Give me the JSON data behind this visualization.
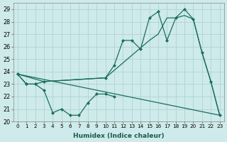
{
  "xlabel": "Humidex (Indice chaleur)",
  "background_color": "#ceeaea",
  "grid_color": "#aacfcf",
  "line_color": "#1a6e5e",
  "xlim": [
    -0.5,
    23.5
  ],
  "ylim": [
    20,
    29.5
  ],
  "yticks": [
    20,
    21,
    22,
    23,
    24,
    25,
    26,
    27,
    28,
    29
  ],
  "xticks": [
    0,
    1,
    2,
    3,
    4,
    5,
    6,
    7,
    8,
    9,
    10,
    11,
    12,
    13,
    14,
    15,
    16,
    17,
    18,
    19,
    20,
    21,
    22,
    23
  ],
  "line1_x": [
    0,
    1,
    2,
    3,
    10,
    11,
    12,
    13,
    14,
    15,
    16,
    17,
    18,
    19,
    20,
    21,
    22,
    23
  ],
  "line1_y": [
    23.8,
    23.0,
    23.0,
    23.2,
    23.5,
    24.5,
    26.5,
    26.5,
    25.8,
    28.3,
    28.8,
    26.5,
    28.3,
    29.0,
    28.2,
    25.5,
    23.2,
    20.5
  ],
  "line2_x": [
    0,
    3,
    10,
    15,
    16,
    17,
    18,
    19,
    20,
    21,
    22,
    23
  ],
  "line2_y": [
    23.8,
    23.2,
    23.5,
    26.5,
    27.0,
    28.3,
    28.3,
    28.5,
    28.2,
    25.5,
    23.2,
    20.5
  ],
  "line3_x": [
    0,
    23
  ],
  "line3_y": [
    23.8,
    20.5
  ],
  "line4_x": [
    0,
    1,
    2,
    3,
    4,
    5,
    6,
    7,
    8,
    9,
    10,
    11
  ],
  "line4_y": [
    23.8,
    23.0,
    23.0,
    22.5,
    20.7,
    21.0,
    20.5,
    20.5,
    21.5,
    22.2,
    22.2,
    22.0
  ]
}
